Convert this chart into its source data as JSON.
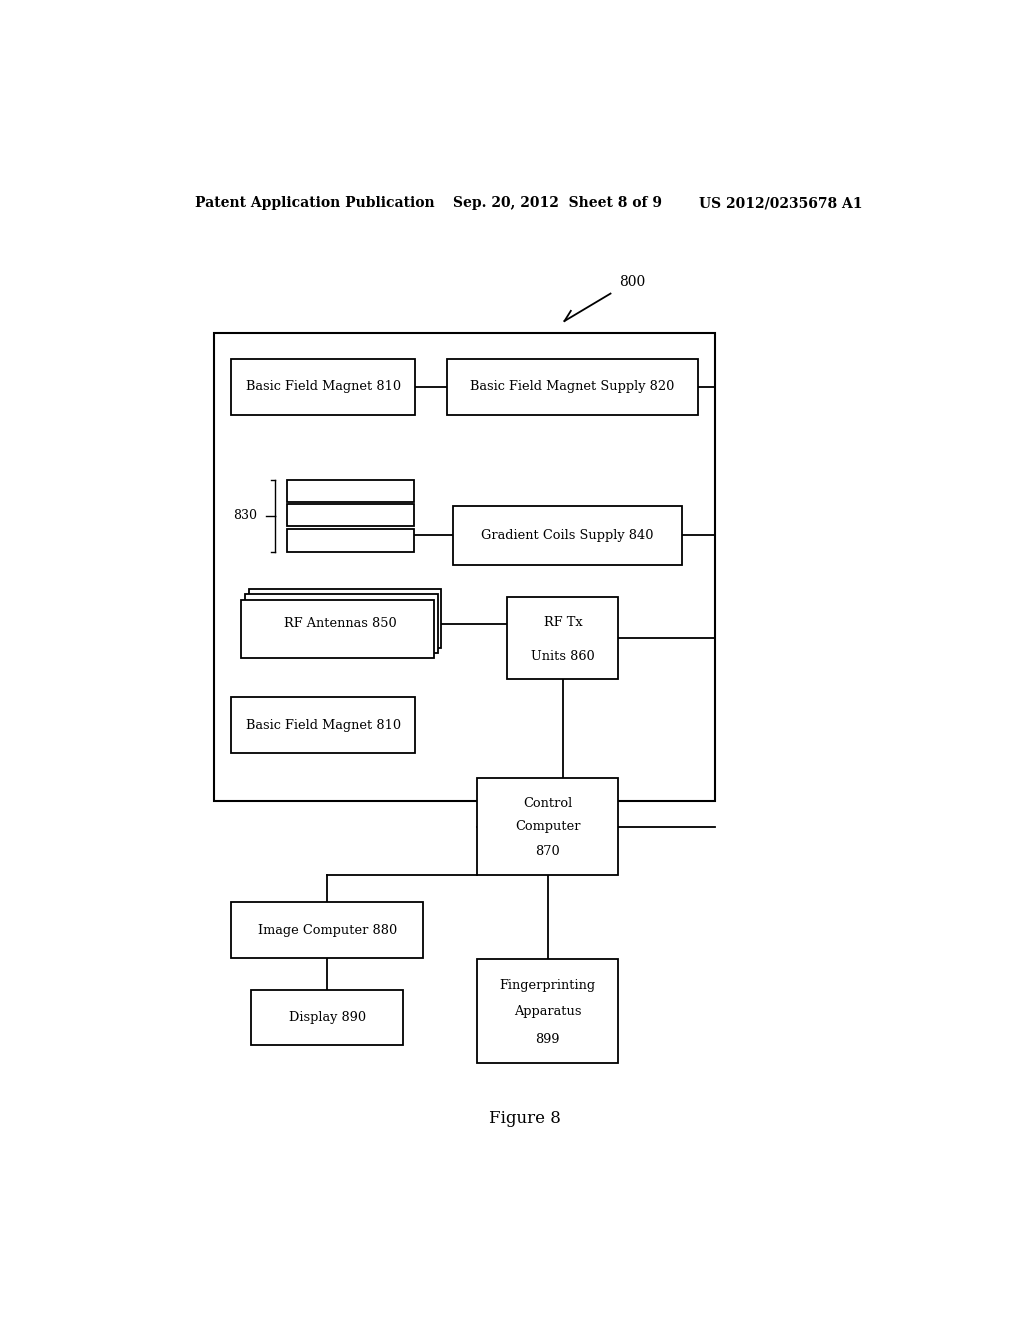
{
  "header_left": "Patent Application Publication",
  "header_mid": "Sep. 20, 2012  Sheet 8 of 9",
  "header_right": "US 2012/0235678 A1",
  "figure_label": "Figure 8",
  "label_800": "800",
  "label_830": "830",
  "bg_color": "#ffffff",
  "text_color": "#000000"
}
